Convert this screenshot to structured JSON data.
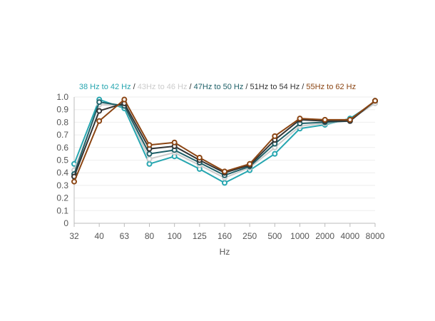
{
  "chart_data": {
    "type": "line",
    "xlabel": "Hz",
    "ylabel": "",
    "ylim": [
      0,
      1.0
    ],
    "yticks": [
      "0",
      "0.1",
      "0.2",
      "0.3",
      "0.4",
      "0.5",
      "0.6",
      "0.7",
      "0.8",
      "0.9",
      "1.0"
    ],
    "categories": [
      "32",
      "40",
      "63",
      "80",
      "100",
      "125",
      "160",
      "250",
      "500",
      "1000",
      "2000",
      "4000",
      "8000"
    ],
    "grid": "horizontal",
    "legend_position": "top-center",
    "series": [
      {
        "name": "38 Hz to 42 Hz",
        "color": "#26a6b0",
        "values": [
          0.47,
          0.98,
          0.91,
          0.47,
          0.53,
          0.43,
          0.32,
          0.42,
          0.55,
          0.75,
          0.78,
          0.83,
          0.96
        ]
      },
      {
        "name": "43Hz to 46 Hz",
        "color": "#cccccc",
        "values": [
          0.42,
          0.94,
          0.93,
          0.51,
          0.56,
          0.46,
          0.36,
          0.44,
          0.6,
          0.77,
          0.79,
          0.82,
          0.95
        ]
      },
      {
        "name": "47Hz to 50 Hz",
        "color": "#1f6068",
        "values": [
          0.39,
          0.96,
          0.93,
          0.55,
          0.58,
          0.48,
          0.38,
          0.45,
          0.63,
          0.79,
          0.8,
          0.81,
          0.97
        ]
      },
      {
        "name": "51Hz to 54 Hz",
        "color": "#333333",
        "values": [
          0.37,
          0.89,
          0.95,
          0.59,
          0.61,
          0.5,
          0.4,
          0.46,
          0.66,
          0.82,
          0.81,
          0.81,
          0.97
        ]
      },
      {
        "name": "55Hz to 62 Hz",
        "color": "#8b4513",
        "values": [
          0.33,
          0.81,
          0.98,
          0.62,
          0.64,
          0.52,
          0.41,
          0.47,
          0.69,
          0.83,
          0.82,
          0.82,
          0.97
        ]
      }
    ]
  }
}
